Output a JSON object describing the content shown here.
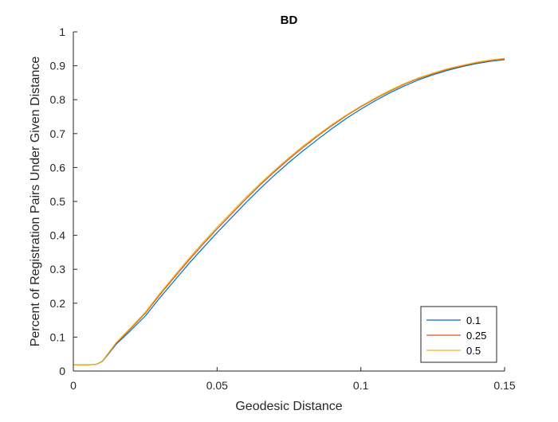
{
  "chart_data": {
    "type": "line",
    "title": "BD",
    "xlabel": "Geodesic Distance",
    "ylabel": "Percent of Registration Pairs Under Given Distance",
    "xlim": [
      0,
      0.15
    ],
    "ylim": [
      0,
      1
    ],
    "xticks": [
      0,
      0.05,
      0.1,
      0.15
    ],
    "xtick_labels": [
      "0",
      "0.05",
      "0.1",
      "0.15"
    ],
    "yticks": [
      0,
      0.1,
      0.2,
      0.3,
      0.4,
      0.5,
      0.6,
      0.7,
      0.8,
      0.9,
      1
    ],
    "ytick_labels": [
      "0",
      "0.1",
      "0.2",
      "0.3",
      "0.4",
      "0.5",
      "0.6",
      "0.7",
      "0.8",
      "0.9",
      "1"
    ],
    "grid": false,
    "legend_position": "bottom-right",
    "series": [
      {
        "name": "0.1",
        "color": "#0072BD",
        "x": [
          0,
          0.005,
          0.008,
          0.01,
          0.012,
          0.015,
          0.02,
          0.025,
          0.03,
          0.035,
          0.04,
          0.045,
          0.05,
          0.055,
          0.06,
          0.065,
          0.07,
          0.075,
          0.08,
          0.085,
          0.09,
          0.095,
          0.1,
          0.105,
          0.11,
          0.115,
          0.12,
          0.125,
          0.13,
          0.135,
          0.14,
          0.145,
          0.15
        ],
        "y": [
          0.018,
          0.018,
          0.02,
          0.028,
          0.048,
          0.08,
          0.12,
          0.162,
          0.215,
          0.265,
          0.315,
          0.362,
          0.408,
          0.452,
          0.496,
          0.538,
          0.578,
          0.615,
          0.65,
          0.683,
          0.715,
          0.745,
          0.772,
          0.797,
          0.82,
          0.84,
          0.858,
          0.873,
          0.886,
          0.897,
          0.906,
          0.913,
          0.918
        ]
      },
      {
        "name": "0.25",
        "color": "#D95319",
        "x": [
          0,
          0.005,
          0.008,
          0.01,
          0.012,
          0.015,
          0.02,
          0.025,
          0.03,
          0.035,
          0.04,
          0.045,
          0.05,
          0.055,
          0.06,
          0.065,
          0.07,
          0.075,
          0.08,
          0.085,
          0.09,
          0.095,
          0.1,
          0.105,
          0.11,
          0.115,
          0.12,
          0.125,
          0.13,
          0.135,
          0.14,
          0.145,
          0.15
        ],
        "y": [
          0.018,
          0.018,
          0.02,
          0.028,
          0.05,
          0.083,
          0.125,
          0.17,
          0.224,
          0.275,
          0.325,
          0.373,
          0.419,
          0.463,
          0.507,
          0.549,
          0.588,
          0.625,
          0.66,
          0.693,
          0.724,
          0.753,
          0.779,
          0.803,
          0.825,
          0.845,
          0.862,
          0.876,
          0.889,
          0.899,
          0.908,
          0.915,
          0.92
        ]
      },
      {
        "name": "0.5",
        "color": "#EDB120",
        "x": [
          0,
          0.005,
          0.008,
          0.01,
          0.012,
          0.015,
          0.02,
          0.025,
          0.03,
          0.035,
          0.04,
          0.045,
          0.05,
          0.055,
          0.06,
          0.065,
          0.07,
          0.075,
          0.08,
          0.085,
          0.09,
          0.095,
          0.1,
          0.105,
          0.11,
          0.115,
          0.12,
          0.125,
          0.13,
          0.135,
          0.14,
          0.145,
          0.15
        ],
        "y": [
          0.018,
          0.018,
          0.02,
          0.029,
          0.051,
          0.085,
          0.128,
          0.173,
          0.228,
          0.279,
          0.33,
          0.378,
          0.424,
          0.468,
          0.512,
          0.553,
          0.592,
          0.629,
          0.664,
          0.696,
          0.727,
          0.755,
          0.781,
          0.805,
          0.827,
          0.847,
          0.864,
          0.878,
          0.891,
          0.901,
          0.91,
          0.917,
          0.922
        ]
      }
    ]
  }
}
